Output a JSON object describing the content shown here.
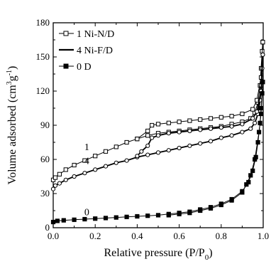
{
  "chart_data": {
    "type": "line",
    "xlabel": "Relative pressure (P/P",
    "xlabel_sub": "0",
    "xlabel_close": ")",
    "ylabel_pre": "Volume adsorbed (cm",
    "ylabel_sup1": "3",
    "ylabel_mid": "g",
    "ylabel_sup2": "-1",
    "ylabel_post": ")",
    "xlim": [
      0.0,
      1.0
    ],
    "ylim": [
      0,
      180
    ],
    "xticks": [
      0.0,
      0.2,
      0.4,
      0.6,
      0.8,
      1.0
    ],
    "xtick_labels": [
      "0.0",
      "0.2",
      "0.4",
      "0.6",
      "0.8",
      "1.0"
    ],
    "yticks": [
      0,
      30,
      60,
      90,
      120,
      150,
      180
    ],
    "ytick_labels": [
      "0",
      "30",
      "60",
      "90",
      "120",
      "150",
      "180"
    ],
    "legend_position": "top-left",
    "grid": false,
    "series": [
      {
        "name": "1 Ni-N/D",
        "marker": "open-square",
        "adsorption": [
          [
            0.0,
            42
          ],
          [
            0.01,
            44
          ],
          [
            0.03,
            47
          ],
          [
            0.06,
            51
          ],
          [
            0.1,
            55
          ],
          [
            0.15,
            59
          ],
          [
            0.2,
            63
          ],
          [
            0.25,
            67
          ],
          [
            0.3,
            71
          ],
          [
            0.35,
            75
          ],
          [
            0.4,
            78
          ],
          [
            0.45,
            81
          ],
          [
            0.5,
            83
          ],
          [
            0.55,
            84
          ],
          [
            0.6,
            85
          ],
          [
            0.65,
            86
          ],
          [
            0.7,
            87
          ],
          [
            0.75,
            88
          ],
          [
            0.8,
            89
          ],
          [
            0.85,
            91
          ],
          [
            0.9,
            93
          ],
          [
            0.94,
            96
          ],
          [
            0.96,
            101
          ],
          [
            0.975,
            110
          ],
          [
            0.985,
            125
          ],
          [
            0.99,
            140
          ],
          [
            0.995,
            155
          ],
          [
            0.998,
            163
          ]
        ],
        "desorption": [
          [
            0.998,
            163
          ],
          [
            0.99,
            132
          ],
          [
            0.97,
            112
          ],
          [
            0.95,
            104
          ],
          [
            0.9,
            100
          ],
          [
            0.85,
            98
          ],
          [
            0.8,
            97
          ],
          [
            0.75,
            96
          ],
          [
            0.7,
            95
          ],
          [
            0.65,
            94
          ],
          [
            0.6,
            93
          ],
          [
            0.55,
            92
          ],
          [
            0.5,
            91
          ],
          [
            0.47,
            90
          ],
          [
            0.45,
            85
          ],
          [
            0.4,
            78
          ]
        ]
      },
      {
        "name": "4 Ni-F/D",
        "marker": "open-circle",
        "adsorption": [
          [
            0.0,
            34
          ],
          [
            0.01,
            37
          ],
          [
            0.03,
            39
          ],
          [
            0.06,
            42
          ],
          [
            0.1,
            45
          ],
          [
            0.15,
            48
          ],
          [
            0.2,
            51
          ],
          [
            0.25,
            54
          ],
          [
            0.3,
            57
          ],
          [
            0.35,
            59
          ],
          [
            0.4,
            62
          ],
          [
            0.45,
            64
          ],
          [
            0.5,
            66
          ],
          [
            0.55,
            68
          ],
          [
            0.6,
            70
          ],
          [
            0.65,
            72
          ],
          [
            0.7,
            74
          ],
          [
            0.75,
            76
          ],
          [
            0.8,
            79
          ],
          [
            0.85,
            81
          ],
          [
            0.9,
            84
          ],
          [
            0.94,
            87
          ],
          [
            0.96,
            92
          ],
          [
            0.975,
            100
          ],
          [
            0.985,
            112
          ],
          [
            0.99,
            125
          ],
          [
            0.995,
            140
          ],
          [
            0.998,
            152
          ]
        ],
        "desorption": [
          [
            0.998,
            152
          ],
          [
            0.99,
            120
          ],
          [
            0.97,
            102
          ],
          [
            0.95,
            96
          ],
          [
            0.9,
            91
          ],
          [
            0.85,
            89
          ],
          [
            0.8,
            88
          ],
          [
            0.75,
            87
          ],
          [
            0.7,
            86
          ],
          [
            0.65,
            85
          ],
          [
            0.6,
            84
          ],
          [
            0.55,
            83
          ],
          [
            0.5,
            81
          ],
          [
            0.47,
            79
          ],
          [
            0.45,
            72
          ],
          [
            0.42,
            67
          ],
          [
            0.4,
            63
          ]
        ]
      },
      {
        "name": "0 D",
        "marker": "filled-square",
        "adsorption": [
          [
            0.0,
            5
          ],
          [
            0.02,
            6
          ],
          [
            0.05,
            6.5
          ],
          [
            0.1,
            7
          ],
          [
            0.15,
            7.5
          ],
          [
            0.2,
            8
          ],
          [
            0.25,
            8.5
          ],
          [
            0.3,
            9
          ],
          [
            0.35,
            9.5
          ],
          [
            0.4,
            10
          ],
          [
            0.45,
            10.5
          ],
          [
            0.5,
            11
          ],
          [
            0.55,
            12
          ],
          [
            0.6,
            13
          ],
          [
            0.65,
            14
          ],
          [
            0.7,
            16
          ],
          [
            0.75,
            18
          ],
          [
            0.8,
            21
          ],
          [
            0.85,
            25
          ],
          [
            0.9,
            32
          ],
          [
            0.93,
            40
          ],
          [
            0.95,
            50
          ],
          [
            0.965,
            62
          ],
          [
            0.975,
            75
          ],
          [
            0.985,
            92
          ],
          [
            0.99,
            105
          ],
          [
            0.995,
            118
          ],
          [
            0.998,
            128
          ]
        ],
        "desorption": [
          [
            0.998,
            128
          ],
          [
            0.99,
            100
          ],
          [
            0.98,
            84
          ],
          [
            0.96,
            60
          ],
          [
            0.94,
            46
          ],
          [
            0.92,
            38
          ],
          [
            0.9,
            31
          ],
          [
            0.85,
            24
          ],
          [
            0.8,
            20
          ],
          [
            0.75,
            17
          ],
          [
            0.7,
            15
          ],
          [
            0.65,
            13
          ],
          [
            0.6,
            12
          ],
          [
            0.55,
            11
          ]
        ]
      }
    ],
    "annotations": [
      {
        "text": "1",
        "x": 0.16,
        "y": 68
      },
      {
        "text": "4",
        "x": 0.16,
        "y": 56
      },
      {
        "text": "0",
        "x": 0.16,
        "y": 11
      }
    ]
  }
}
